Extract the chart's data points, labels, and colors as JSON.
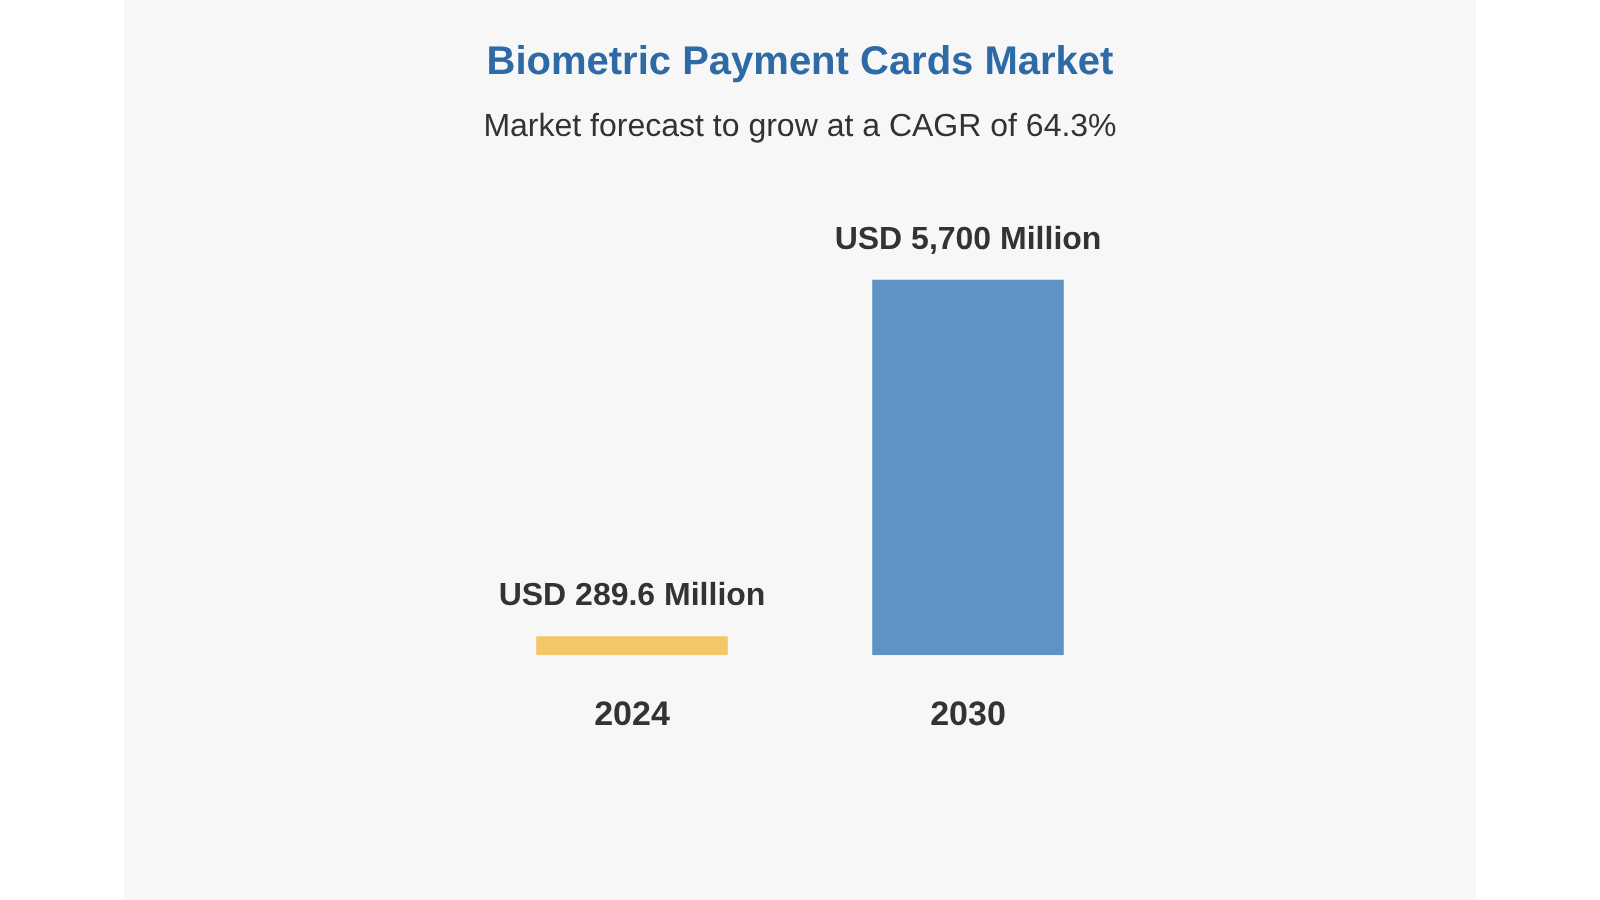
{
  "chart_data": {
    "type": "bar",
    "title": "Biometric Payment Cards Market",
    "subtitle": "Market forecast to grow at a CAGR of 64.3%",
    "categories": [
      "2024",
      "2030"
    ],
    "values": [
      289.6,
      5700
    ],
    "colors": [
      "#f3c766",
      "#5f93c4"
    ],
    "value_labels": [
      "USD 289.6 Million",
      "USD 5,700 Million"
    ]
  }
}
